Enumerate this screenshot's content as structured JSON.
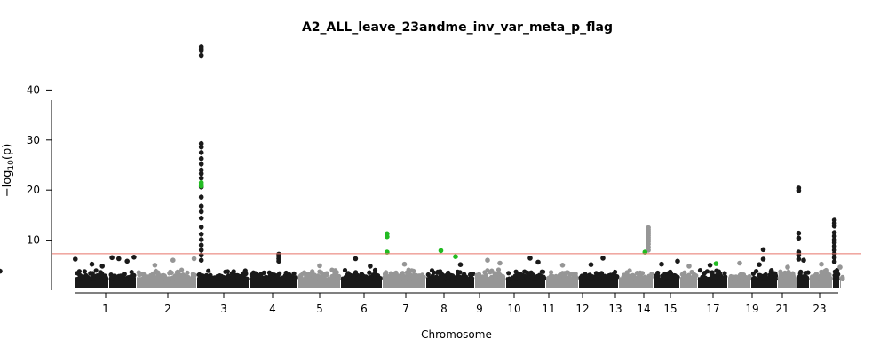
{
  "chart_data": {
    "type": "scatter",
    "title": "A2_ALL_leave_23andme_inv_var_meta_p_flag",
    "xlabel": "Chromosome",
    "ylabel": "−log",
    "ylabel_sub": "10",
    "ylabel_tail": "(p)",
    "ylim": [
      0,
      48
    ],
    "yticks": [
      10,
      20,
      30,
      40
    ],
    "significance_line": 7.3,
    "colors": {
      "dark": "#1a1a1a",
      "light": "#969696",
      "highlight": "#22bb22",
      "threshold": "#e8756a"
    },
    "chromosomes": [
      {
        "label": "1",
        "shade": "dark",
        "peaks": [
          [
            0.02,
            6.2
          ],
          [
            0.5,
            5.2
          ],
          [
            0.8,
            4.8
          ]
        ]
      },
      {
        "label": "",
        "shade": "dark",
        "peaks": [
          [
            0.1,
            6.5
          ],
          [
            0.35,
            6.3
          ],
          [
            0.65,
            5.8
          ],
          [
            0.9,
            6.6
          ]
        ]
      },
      {
        "label": "2",
        "shade": "light",
        "peaks": [
          [
            0.3,
            5.0
          ],
          [
            0.6,
            6.0
          ],
          [
            0.95,
            6.3
          ]
        ]
      },
      {
        "label": "3",
        "shade": "dark",
        "peaks": [
          [
            0.08,
            48.6
          ],
          [
            0.08,
            48.2
          ],
          [
            0.08,
            47.8
          ],
          [
            0.08,
            46.9
          ],
          [
            0.08,
            29.3
          ],
          [
            0.08,
            28.6
          ],
          [
            0.08,
            27.5
          ],
          [
            0.08,
            26.3
          ],
          [
            0.08,
            25.2
          ],
          [
            0.08,
            24.0
          ],
          [
            0.08,
            23.3
          ],
          [
            0.08,
            22.4
          ],
          [
            0.08,
            20.6
          ],
          [
            0.08,
            18.6
          ],
          [
            0.08,
            16.8
          ],
          [
            0.08,
            15.7
          ],
          [
            0.08,
            14.4
          ],
          [
            0.08,
            12.6
          ],
          [
            0.08,
            11.2
          ],
          [
            0.08,
            10.1
          ],
          [
            0.08,
            9.0
          ],
          [
            0.08,
            8.0
          ],
          [
            0.08,
            7.0
          ],
          [
            0.08,
            6.0
          ]
        ],
        "hits": [
          [
            0.08,
            21.5
          ],
          [
            0.08,
            21.1
          ],
          [
            0.08,
            20.8
          ]
        ]
      },
      {
        "label": "",
        "shade": "dark",
        "peaks": [
          [
            0.6,
            7.2
          ],
          [
            0.6,
            6.8
          ],
          [
            0.6,
            6.3
          ],
          [
            0.6,
            5.8
          ]
        ]
      },
      {
        "label": "4",
        "shade": "light",
        "peaks": [
          [
            0.5,
            4.9
          ]
        ]
      },
      {
        "label": "5",
        "shade": "dark",
        "peaks": [
          [
            0.35,
            6.3
          ],
          [
            0.7,
            4.8
          ]
        ]
      },
      {
        "label": "6",
        "shade": "light",
        "peaks": [
          [
            0.5,
            5.2
          ]
        ],
        "hits": [
          [
            0.1,
            11.3
          ],
          [
            0.1,
            10.7
          ],
          [
            0.1,
            7.6
          ]
        ]
      },
      {
        "label": "7",
        "shade": "dark",
        "peaks": [
          [
            0.7,
            5.1
          ]
        ],
        "hits": [
          [
            0.3,
            7.9
          ],
          [
            0.6,
            6.7
          ]
        ]
      },
      {
        "label": "8",
        "shade": "light",
        "peaks": [
          [
            0.4,
            6.0
          ],
          [
            0.8,
            5.4
          ]
        ]
      },
      {
        "label": "9",
        "shade": "dark",
        "peaks": [
          [
            0.6,
            6.4
          ],
          [
            0.8,
            5.6
          ]
        ]
      },
      {
        "label": "10",
        "shade": "light",
        "peaks": [
          [
            0.5,
            5.0
          ]
        ]
      },
      {
        "label": "11",
        "shade": "dark",
        "peaks": [
          [
            0.6,
            6.4
          ],
          [
            0.3,
            5.1
          ]
        ]
      },
      {
        "label": "12",
        "shade": "light",
        "peaks": [
          [
            0.85,
            12.5
          ],
          [
            0.85,
            12.1
          ],
          [
            0.85,
            11.7
          ],
          [
            0.85,
            11.3
          ],
          [
            0.85,
            10.9
          ],
          [
            0.85,
            10.5
          ],
          [
            0.85,
            10.1
          ],
          [
            0.85,
            9.7
          ],
          [
            0.85,
            9.2
          ],
          [
            0.85,
            8.6
          ],
          [
            0.85,
            8.0
          ]
        ],
        "hits": [
          [
            0.75,
            7.6
          ]
        ]
      },
      {
        "label": "13",
        "shade": "dark",
        "peaks": [
          [
            0.9,
            5.8
          ],
          [
            0.3,
            5.2
          ]
        ]
      },
      {
        "label": "14",
        "shade": "light",
        "peaks": [
          [
            0.5,
            4.8
          ]
        ]
      },
      {
        "label": "15",
        "shade": "dark",
        "peaks": [
          [
            0.4,
            5.0
          ]
        ],
        "hits": [
          [
            0.6,
            5.3
          ]
        ]
      },
      {
        "label": "",
        "shade": "light",
        "peaks": [
          [
            0.5,
            5.4
          ]
        ]
      },
      {
        "label": "17",
        "shade": "dark",
        "peaks": [
          [
            0.45,
            8.1
          ],
          [
            0.45,
            6.2
          ],
          [
            0.3,
            5.1
          ]
        ]
      },
      {
        "label": "",
        "shade": "light",
        "peaks": [
          [
            0.5,
            4.6
          ]
        ]
      },
      {
        "label": "19",
        "shade": "dark",
        "peaks": [
          [
            0.1,
            20.4
          ],
          [
            0.1,
            19.9
          ],
          [
            0.1,
            11.4
          ],
          [
            0.1,
            10.4
          ],
          [
            0.1,
            7.6
          ],
          [
            0.1,
            7.0
          ],
          [
            0.1,
            6.2
          ],
          [
            0.5,
            6.0
          ]
        ]
      },
      {
        "label": "",
        "shade": "light",
        "peaks": [
          [
            0.5,
            5.2
          ]
        ]
      },
      {
        "label": "21",
        "shade": "dark",
        "peaks": [
          [
            0.2,
            14.0
          ],
          [
            0.2,
            13.4
          ],
          [
            0.2,
            12.8
          ],
          [
            0.2,
            11.5
          ],
          [
            0.2,
            10.8
          ],
          [
            0.2,
            10.1
          ],
          [
            0.2,
            9.5
          ],
          [
            0.2,
            8.8
          ],
          [
            0.2,
            8.0
          ],
          [
            0.2,
            7.3
          ],
          [
            0.2,
            6.5
          ],
          [
            0.2,
            5.7
          ]
        ]
      },
      {
        "label": "",
        "shade": "light",
        "peaks": [
          [
            0.5,
            4.6
          ]
        ]
      },
      {
        "label": "23",
        "shade": "dark",
        "peaks": [
          [
            0.7,
            3.8
          ]
        ]
      }
    ]
  }
}
